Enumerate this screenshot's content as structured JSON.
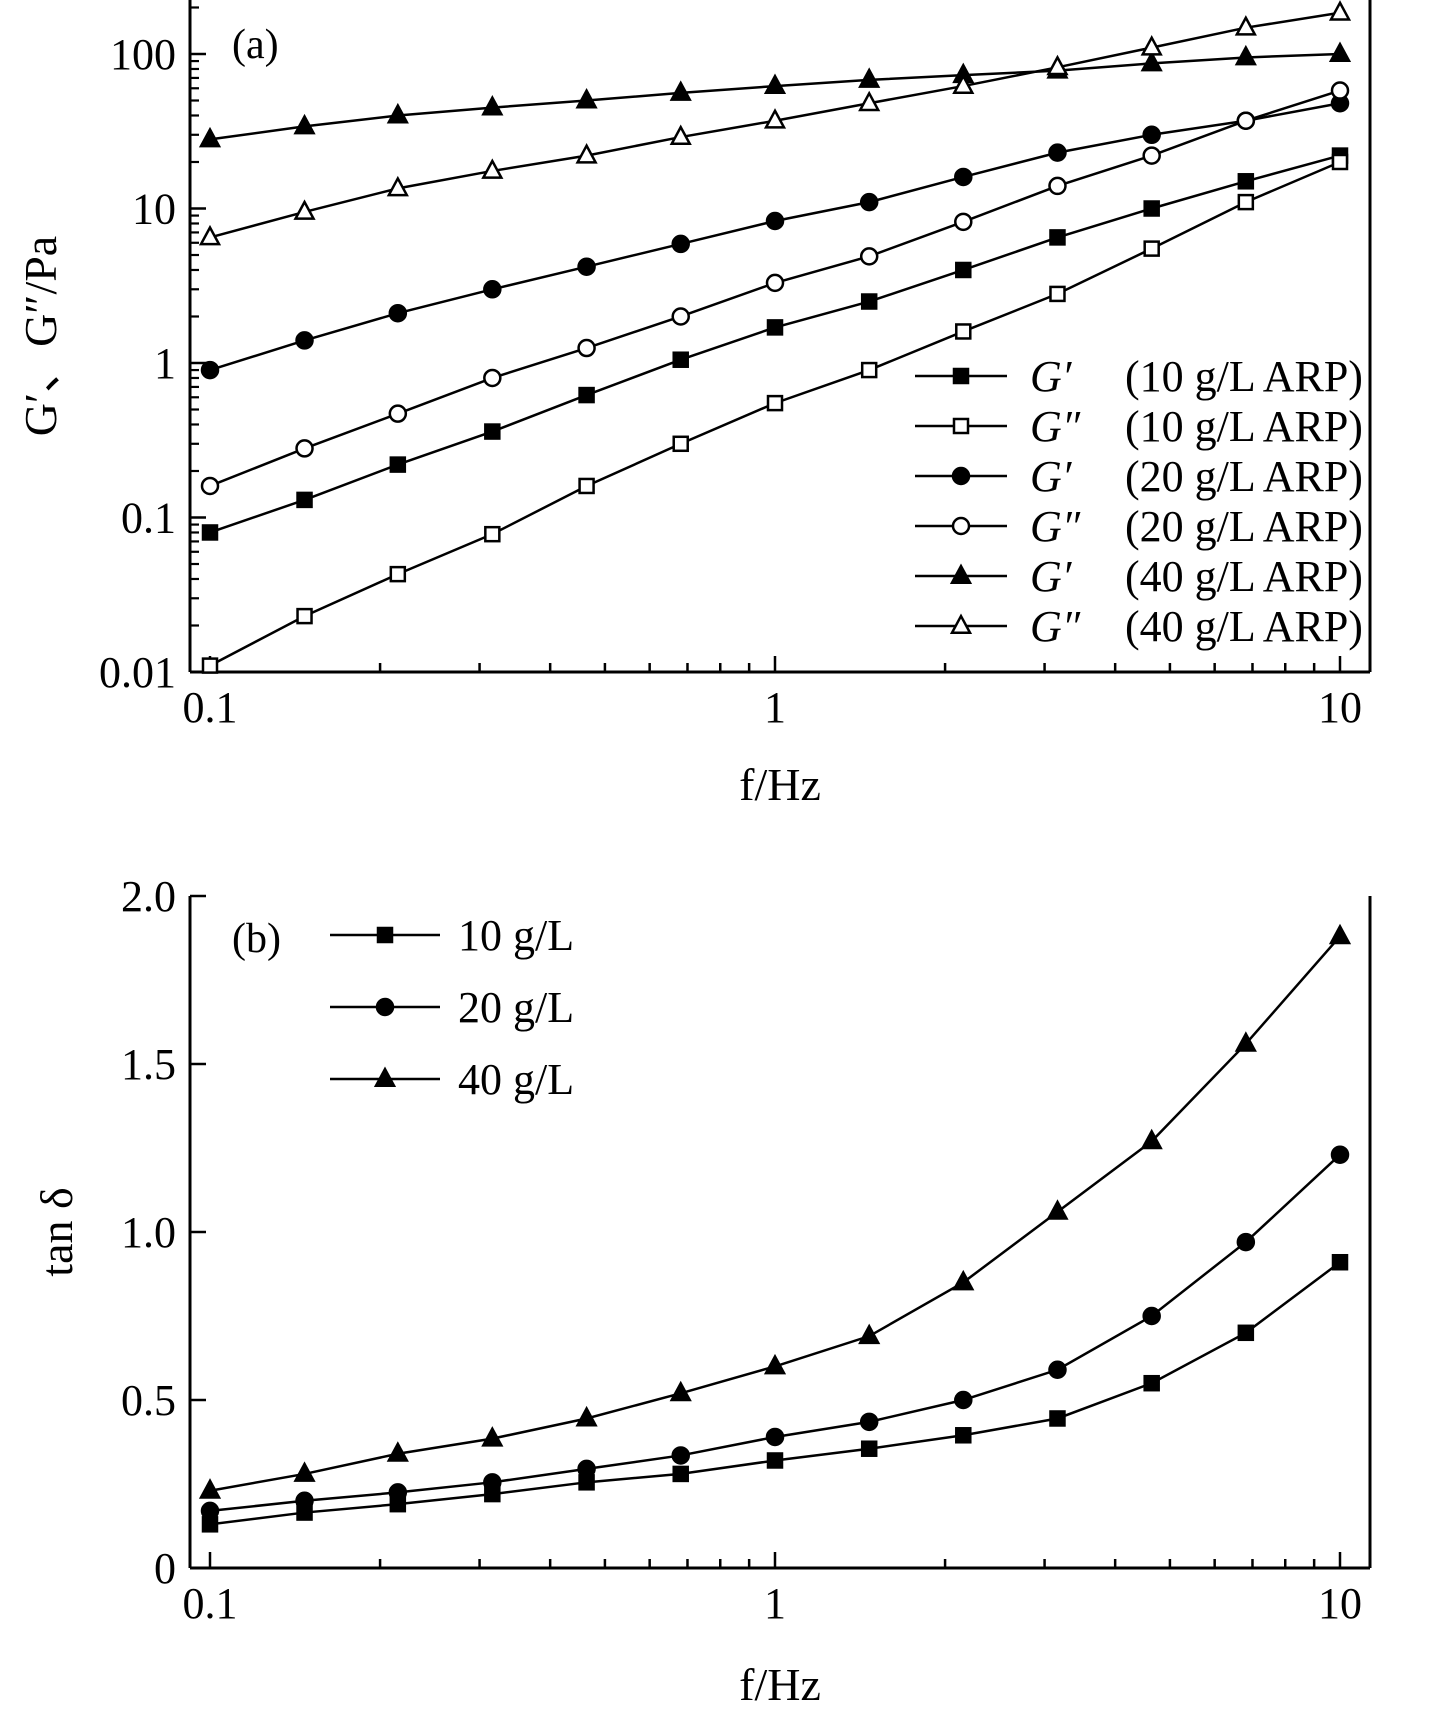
{
  "chart_data": [
    {
      "type": "line",
      "panel_label": "(a)",
      "xlabel": "f/Hz",
      "ylabel": "G′、G″/Pa",
      "xscale": "log",
      "yscale": "log",
      "xlim": [
        0.1,
        10
      ],
      "ylim": [
        0.01,
        200
      ],
      "xticks": [
        0.1,
        1,
        10
      ],
      "xtick_labels": [
        "0.1",
        "1",
        "10"
      ],
      "yticks": [
        0.01,
        0.1,
        1,
        10,
        100
      ],
      "ytick_labels": [
        "0.01",
        "0.1",
        "1",
        "10",
        "100"
      ],
      "grid": false,
      "legend_position": "lower-right",
      "x": [
        0.1,
        0.147,
        0.215,
        0.316,
        0.464,
        0.681,
        1.0,
        1.468,
        2.154,
        3.162,
        4.642,
        6.813,
        10.0
      ],
      "series": [
        {
          "name": "G′",
          "desc": "(10 g/L ARP)",
          "marker": "square-filled",
          "values": [
            0.08,
            0.13,
            0.22,
            0.36,
            0.62,
            1.05,
            1.7,
            2.5,
            4.0,
            6.5,
            10,
            15,
            22
          ]
        },
        {
          "name": "G″",
          "desc": "(10 g/L ARP)",
          "marker": "square-open",
          "values": [
            0.011,
            0.023,
            0.043,
            0.078,
            0.16,
            0.3,
            0.55,
            0.9,
            1.6,
            2.8,
            5.5,
            11,
            20
          ]
        },
        {
          "name": "G′",
          "desc": "(20 g/L ARP)",
          "marker": "circle-filled",
          "values": [
            0.9,
            1.4,
            2.1,
            3.0,
            4.2,
            5.9,
            8.3,
            11,
            16,
            23,
            30,
            37,
            48
          ]
        },
        {
          "name": "G″",
          "desc": "(20 g/L ARP)",
          "marker": "circle-open",
          "values": [
            0.16,
            0.28,
            0.47,
            0.8,
            1.25,
            2.0,
            3.3,
            4.9,
            8.2,
            14,
            22,
            37,
            58
          ]
        },
        {
          "name": "G′",
          "desc": "(40 g/L ARP)",
          "marker": "triangle-filled",
          "values": [
            28,
            34,
            40,
            45,
            50,
            56,
            62,
            68,
            73,
            78,
            87,
            95,
            100
          ]
        },
        {
          "name": "G″",
          "desc": "(40 g/L ARP)",
          "marker": "triangle-open",
          "values": [
            6.5,
            9.5,
            13.5,
            17.5,
            22,
            29,
            37,
            48,
            62,
            82,
            110,
            148,
            185
          ]
        }
      ]
    },
    {
      "type": "line",
      "panel_label": "(b)",
      "xlabel": "f/Hz",
      "ylabel": "tan δ",
      "xscale": "log",
      "yscale": "linear",
      "xlim": [
        0.1,
        10
      ],
      "ylim": [
        0,
        2.0
      ],
      "xticks": [
        0.1,
        1,
        10
      ],
      "xtick_labels": [
        "0.1",
        "1",
        "10"
      ],
      "yticks": [
        0,
        0.5,
        1.0,
        1.5,
        2.0
      ],
      "ytick_labels": [
        "0",
        "0.5",
        "1.0",
        "1.5",
        "2.0"
      ],
      "grid": false,
      "legend_position": "top-left",
      "x": [
        0.1,
        0.147,
        0.215,
        0.316,
        0.464,
        0.681,
        1.0,
        1.468,
        2.154,
        3.162,
        4.642,
        6.813,
        10.0
      ],
      "series": [
        {
          "name": "10 g/L",
          "marker": "square-filled",
          "values": [
            0.13,
            0.165,
            0.19,
            0.22,
            0.255,
            0.28,
            0.32,
            0.355,
            0.395,
            0.445,
            0.55,
            0.7,
            0.91
          ]
        },
        {
          "name": "20 g/L",
          "marker": "circle-filled",
          "values": [
            0.17,
            0.2,
            0.225,
            0.255,
            0.295,
            0.335,
            0.39,
            0.435,
            0.5,
            0.59,
            0.75,
            0.97,
            1.23
          ]
        },
        {
          "name": "40 g/L",
          "marker": "triangle-filled",
          "values": [
            0.23,
            0.28,
            0.34,
            0.385,
            0.445,
            0.52,
            0.6,
            0.69,
            0.85,
            1.06,
            1.27,
            1.56,
            1.88
          ]
        }
      ]
    }
  ]
}
